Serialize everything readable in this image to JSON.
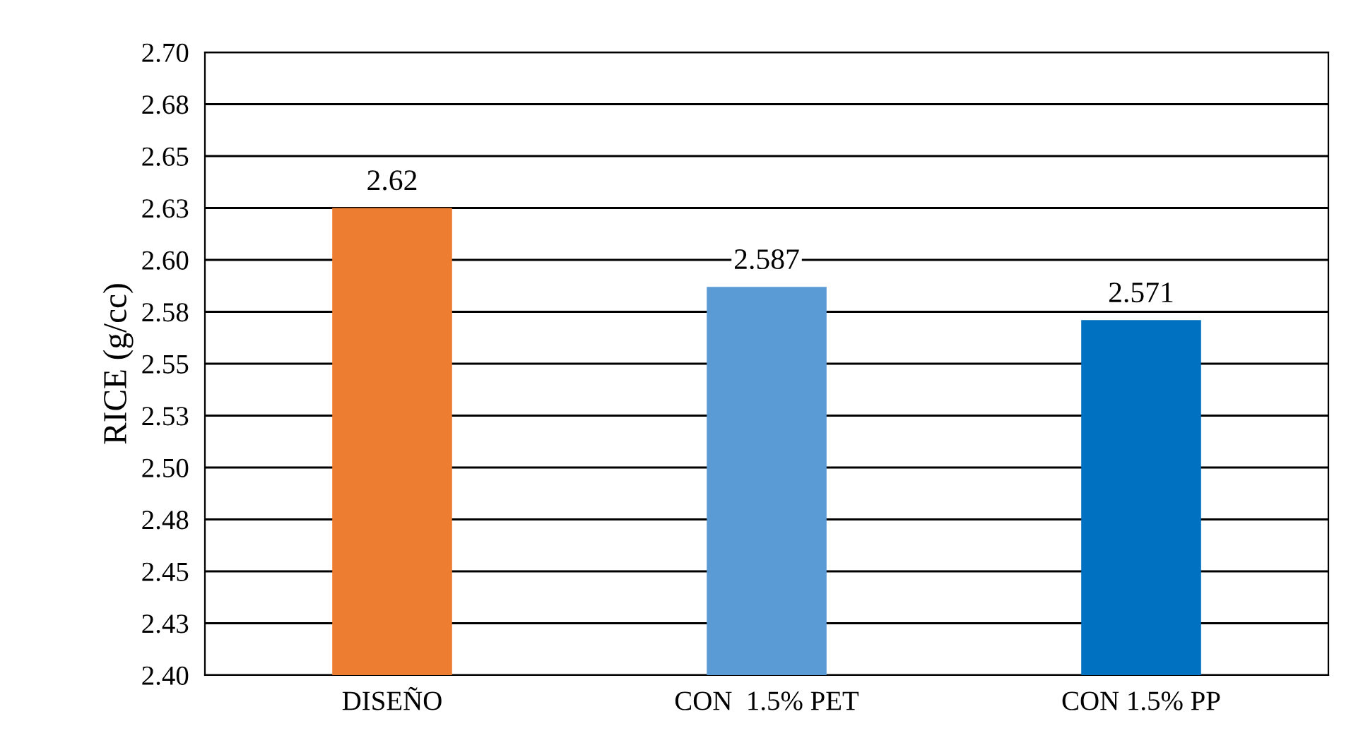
{
  "chart_data": {
    "type": "bar",
    "ylabel": "RICE (g/cc)",
    "categories": [
      "DISEÑO",
      "CON  1.5% PET",
      "CON 1.5% PP"
    ],
    "values": [
      2.625,
      2.587,
      2.571
    ],
    "colors": [
      "#ed7d31",
      "#5b9bd5",
      "#0070c0"
    ],
    "value_labels": [
      "2.62",
      "2.587",
      "2.571"
    ],
    "ylim": [
      2.4,
      2.7
    ],
    "yticks": [
      {
        "value": 2.4,
        "label": "2.40"
      },
      {
        "value": 2.425,
        "label": "2.43"
      },
      {
        "value": 2.45,
        "label": "2.45"
      },
      {
        "value": 2.475,
        "label": "2.48"
      },
      {
        "value": 2.5,
        "label": "2.50"
      },
      {
        "value": 2.525,
        "label": "2.53"
      },
      {
        "value": 2.55,
        "label": "2.55"
      },
      {
        "value": 2.575,
        "label": "2.58"
      },
      {
        "value": 2.6,
        "label": "2.60"
      },
      {
        "value": 2.625,
        "label": "2.63"
      },
      {
        "value": 2.65,
        "label": "2.65"
      },
      {
        "value": 2.675,
        "label": "2.68"
      },
      {
        "value": 2.7,
        "label": "2.70"
      }
    ],
    "grid": "y",
    "legend": false
  }
}
